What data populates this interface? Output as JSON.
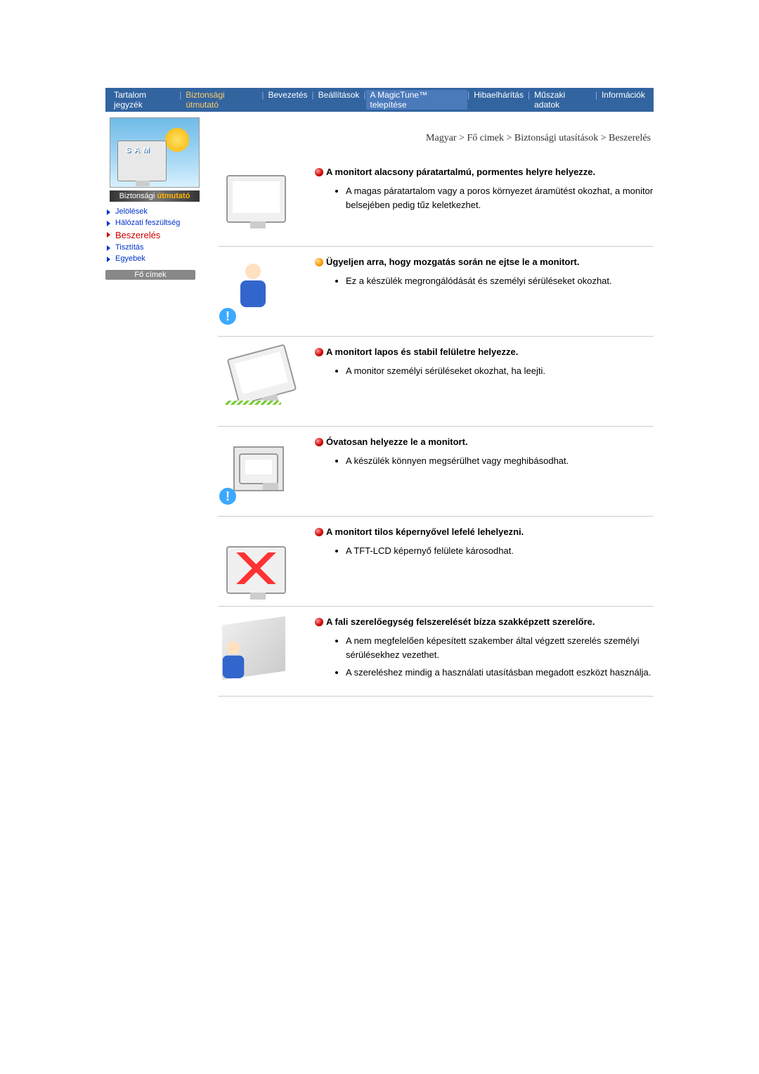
{
  "nav": {
    "items": [
      "Tartalom jegyzék",
      "Biztonsági útmutató",
      "Bevezetés",
      "Beállítások",
      "A MagicTune™ telepítése",
      "Hibaelhárítás",
      "Műszaki adatok",
      "Információk"
    ],
    "hot_index": 1,
    "sel_index": 4
  },
  "side": {
    "thumb_text": "S A M",
    "title_pre": "Biztonsági ",
    "title_accent": "útmutató",
    "menu": [
      {
        "label": "Jelölések",
        "active": false
      },
      {
        "label": "Hálózati feszültség",
        "active": false
      },
      {
        "label": "Beszerelés",
        "active": true
      },
      {
        "label": "Tisztítás",
        "active": false
      },
      {
        "label": "Egyebek",
        "active": false
      }
    ],
    "footer": "Fő címek"
  },
  "crumb": "Magyar > Fő cimek > Biztonsági utasítások > Beszerelés",
  "sections": [
    {
      "dot": "red",
      "heading": "A monitort alacsony páratartalmú, pormentes helyre helyezze.",
      "bullets": [
        "A magas páratartalom vagy a poros környezet áramütést okozhat, a monitor belsejében pedig tűz keletkezhet."
      ],
      "ill": "monitor",
      "warn": false
    },
    {
      "dot": "or",
      "heading": "Ügyeljen arra, hogy mozgatás során ne ejtse le a monitort.",
      "bullets": [
        "Ez a készülék megrongálódását és személyi sérüléseket okozhat."
      ],
      "ill": "person",
      "warn": true
    },
    {
      "dot": "red",
      "heading": "A monitort lapos és stabil felületre helyezze.",
      "bullets": [
        "A monitor személyi sérüléseket okozhat, ha leejti."
      ],
      "ill": "fall",
      "warn": false
    },
    {
      "dot": "red",
      "heading": "Óvatosan helyezze le a monitort.",
      "bullets": [
        "A készülék könnyen megsérülhet vagy meghibásodhat."
      ],
      "ill": "box",
      "warn": true
    },
    {
      "dot": "red",
      "heading": "A monitort tilos képernyővel lefelé lehelyezni.",
      "bullets": [
        "A TFT-LCD képernyő felülete károsodhat."
      ],
      "ill": "cross",
      "warn": false
    },
    {
      "dot": "red",
      "heading": "A fali szerelőegység felszerelését bízza szakképzett szerelőre.",
      "bullets": [
        "A nem megfelelően képesített szakember által végzett szerelés személyi sérülésekhez vezethet.",
        "A szereléshez mindig a használati utasításban megadott eszközt használja."
      ],
      "ill": "wall",
      "warn": false
    }
  ]
}
